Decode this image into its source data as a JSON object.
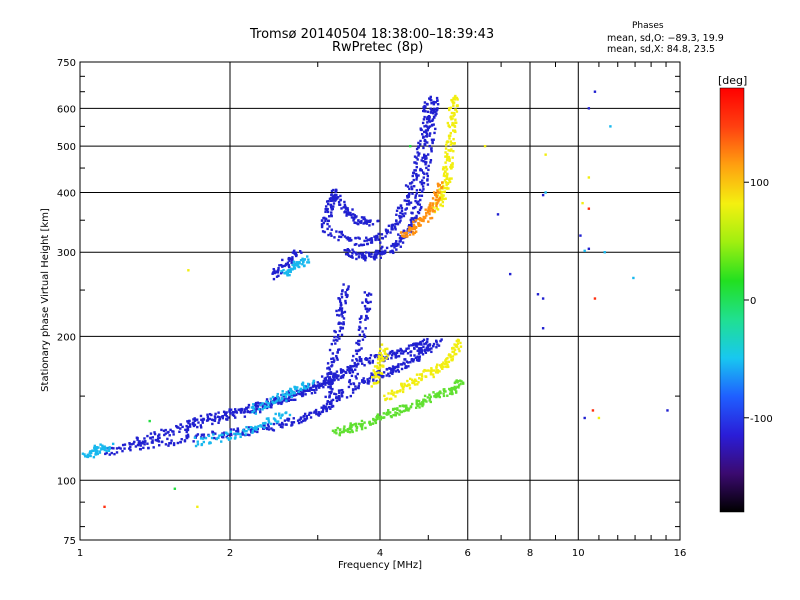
{
  "header": {
    "title_line1": "Tromsø 20140504 18:38:00–18:39:43",
    "title_line2": "RwPretec (8p)",
    "phase_heading": "Phases",
    "phase_o": "mean, sd,O: −89.3, 19.9",
    "phase_x": "mean, sd,X:  84.8, 23.5"
  },
  "chart_data": {
    "type": "scatter",
    "xlabel": "Frequency [MHz]",
    "ylabel": "Stationary phase Virtual Height [km]",
    "xscale": "log",
    "yscale": "log",
    "xlim": [
      1,
      16
    ],
    "ylim": [
      75,
      750
    ],
    "x_ticks": [
      1,
      2,
      4,
      6,
      8,
      10,
      16
    ],
    "x_tick_labels": [
      "1",
      "2",
      "4",
      "6",
      "8",
      "10",
      "16"
    ],
    "x_minor_ticks": [
      3,
      5,
      7,
      9,
      11,
      12,
      13,
      14,
      15
    ],
    "y_ticks": [
      75,
      100,
      200,
      300,
      400,
      500,
      600,
      750
    ],
    "y_tick_labels": [
      "75",
      "100",
      "200",
      "300",
      "400",
      "500",
      "600",
      "750"
    ],
    "grid": true,
    "colorbar": {
      "label": "[deg]",
      "range": [
        -180,
        180
      ],
      "tick_values": [
        100,
        0,
        -100
      ],
      "tick_labels": [
        "100",
        "0",
        "-100"
      ],
      "stops": [
        "#000000",
        "#3b0a70",
        "#2a1dd8",
        "#1f5fff",
        "#18c8f0",
        "#20e090",
        "#22e020",
        "#a0ef10",
        "#f4f010",
        "#ffa010",
        "#ff4010",
        "#ff0000"
      ]
    },
    "series": [
      {
        "color": "#2020d0",
        "traces": [
          [
            [
              1.12,
              115
            ],
            [
              1.3,
              118
            ],
            [
              1.5,
              120
            ],
            [
              1.8,
              124
            ],
            [
              2.1,
              126
            ],
            [
              2.4,
              129
            ],
            [
              2.7,
              133
            ],
            [
              3.0,
              139
            ],
            [
              3.2,
              146
            ],
            [
              3.35,
              154
            ]
          ],
          [
            [
              1.28,
              120
            ],
            [
              1.5,
              126
            ],
            [
              1.7,
              133
            ],
            [
              2.0,
              138
            ],
            [
              2.3,
              143
            ],
            [
              2.6,
              149
            ],
            [
              2.9,
              156
            ],
            [
              3.2,
              164
            ],
            [
              3.5,
              172
            ],
            [
              3.9,
              180
            ],
            [
              4.3,
              184
            ],
            [
              4.7,
              190
            ],
            [
              5.0,
              195
            ]
          ],
          [
            [
              1.6,
              128
            ],
            [
              1.9,
              135
            ],
            [
              2.2,
              140
            ],
            [
              2.5,
              147
            ],
            [
              2.8,
              152
            ],
            [
              3.1,
              160
            ],
            [
              3.4,
              168
            ]
          ],
          [
            [
              3.15,
              150
            ],
            [
              3.2,
              175
            ],
            [
              3.3,
              205
            ],
            [
              3.35,
              230
            ],
            [
              3.4,
              255
            ]
          ],
          [
            [
              3.5,
              150
            ],
            [
              3.6,
              180
            ],
            [
              3.7,
              215
            ],
            [
              3.8,
              245
            ]
          ],
          [
            [
              3.6,
              158
            ],
            [
              3.9,
              165
            ],
            [
              4.2,
              170
            ],
            [
              4.5,
              175
            ],
            [
              4.9,
              185
            ],
            [
              5.3,
              195
            ]
          ],
          [
            [
              3.4,
              300
            ],
            [
              3.7,
              293
            ],
            [
              4.0,
              297
            ],
            [
              4.3,
              310
            ],
            [
              4.55,
              332
            ],
            [
              4.75,
              370
            ],
            [
              4.9,
              425
            ],
            [
              5.0,
              500
            ],
            [
              5.1,
              570
            ],
            [
              5.15,
              625
            ]
          ],
          [
            [
              3.2,
              330
            ],
            [
              3.6,
              315
            ],
            [
              4.0,
              320
            ],
            [
              4.3,
              345
            ],
            [
              4.5,
              380
            ],
            [
              4.7,
              430
            ],
            [
              4.85,
              500
            ],
            [
              4.95,
              570
            ],
            [
              5.0,
              630
            ]
          ],
          [
            [
              3.1,
              335
            ],
            [
              3.15,
              370
            ],
            [
              3.25,
              400
            ],
            [
              3.4,
              370
            ],
            [
              3.6,
              350
            ],
            [
              3.9,
              345
            ]
          ],
          [
            [
              2.45,
              268
            ],
            [
              2.6,
              285
            ],
            [
              2.75,
              300
            ]
          ]
        ]
      },
      {
        "color": "#18b8ee",
        "traces": [
          [
            [
              1.03,
              112
            ],
            [
              1.08,
              116
            ],
            [
              1.15,
              118
            ]
          ],
          [
            [
              1.7,
              120
            ],
            [
              2.0,
              124
            ],
            [
              2.3,
              130
            ],
            [
              2.6,
              137
            ]
          ],
          [
            [
              2.2,
              140
            ],
            [
              2.5,
              148
            ],
            [
              2.7,
              155
            ],
            [
              2.9,
              160
            ]
          ],
          [
            [
              2.55,
              270
            ],
            [
              2.7,
              280
            ],
            [
              2.85,
              290
            ]
          ]
        ]
      },
      {
        "color": "#60e030",
        "traces": [
          [
            [
              3.25,
              126
            ],
            [
              3.5,
              129
            ],
            [
              3.8,
              132
            ],
            [
              4.1,
              137
            ],
            [
              4.4,
              141
            ],
            [
              4.8,
              145
            ],
            [
              5.2,
              150
            ],
            [
              5.6,
              155
            ],
            [
              5.8,
              160
            ]
          ]
        ]
      },
      {
        "color": "#f2ee10",
        "traces": [
          [
            [
              4.1,
              148
            ],
            [
              4.5,
              158
            ],
            [
              4.9,
              165
            ],
            [
              5.3,
              172
            ],
            [
              5.6,
              182
            ],
            [
              5.8,
              196
            ]
          ],
          [
            [
              3.9,
              160
            ],
            [
              4.0,
              175
            ],
            [
              4.1,
              190
            ]
          ],
          [
            [
              5.2,
              370
            ],
            [
              5.35,
              400
            ],
            [
              5.45,
              430
            ],
            [
              5.5,
              470
            ],
            [
              5.55,
              520
            ],
            [
              5.6,
              580
            ],
            [
              5.62,
              640
            ]
          ]
        ]
      },
      {
        "color": "#ff9010",
        "traces": [
          [
            [
              4.45,
              325
            ],
            [
              4.7,
              338
            ],
            [
              4.95,
              355
            ],
            [
              5.15,
              380
            ],
            [
              5.35,
              420
            ]
          ]
        ]
      },
      {
        "color": "#2020d0",
        "scatter": [
          [
            8.5,
            240
          ],
          [
            8.5,
            208
          ],
          [
            8.5,
            395
          ],
          [
            10.1,
            325
          ],
          [
            10.5,
            305
          ],
          [
            10.8,
            650
          ],
          [
            10.3,
            135
          ],
          [
            15.1,
            140
          ],
          [
            6.9,
            360
          ],
          [
            8.3,
            245
          ],
          [
            10.5,
            600
          ],
          [
            7.3,
            270
          ]
        ]
      },
      {
        "color": "#18b8ee",
        "scatter": [
          [
            8.6,
            400
          ],
          [
            10.3,
            302
          ],
          [
            11.6,
            550
          ],
          [
            12.9,
            265
          ],
          [
            11.3,
            300
          ]
        ]
      },
      {
        "color": "#f2ee10",
        "scatter": [
          [
            1.65,
            275
          ],
          [
            1.72,
            88
          ],
          [
            8.6,
            480
          ],
          [
            10.2,
            380
          ],
          [
            10.5,
            430
          ],
          [
            6.5,
            500
          ],
          [
            11.0,
            135
          ]
        ]
      },
      {
        "color": "#ff3010",
        "scatter": [
          [
            1.12,
            88
          ],
          [
            10.8,
            240
          ],
          [
            10.5,
            370
          ],
          [
            10.7,
            140
          ]
        ]
      },
      {
        "color": "#22dd40",
        "scatter": [
          [
            1.38,
            133
          ],
          [
            1.55,
            96
          ],
          [
            4.6,
            500
          ]
        ]
      }
    ]
  }
}
